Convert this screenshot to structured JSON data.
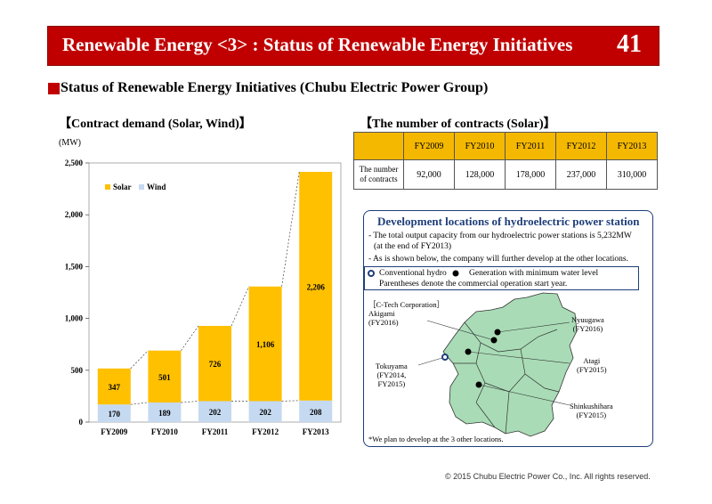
{
  "header": {
    "title": "Renewable Energy <3> : Status of Renewable Energy Initiatives",
    "page_number": "41"
  },
  "section_title": "Status of Renewable Energy Initiatives (Chubu Electric Power Group)",
  "chart_data": {
    "type": "bar",
    "stacked": true,
    "title": "【Contract demand (Solar, Wind)】",
    "ylabel": "(MW)",
    "categories": [
      "FY2009",
      "FY2010",
      "FY2011",
      "FY2012",
      "FY2013"
    ],
    "series": [
      {
        "name": "Wind",
        "values": [
          170,
          189,
          202,
          202,
          208
        ],
        "color": "#c5d9f1"
      },
      {
        "name": "Solar",
        "values": [
          347,
          501,
          726,
          1106,
          2206
        ],
        "color": "#ffc000"
      }
    ],
    "ylim": [
      0,
      2500
    ],
    "yticks": [
      0,
      500,
      1000,
      1500,
      2000,
      2500
    ],
    "ytick_labels": [
      "0",
      "500",
      "1,000",
      "1,500",
      "2,000",
      "2,500"
    ],
    "solar_labels": [
      "347",
      "501",
      "726",
      "1,106",
      "2,206"
    ],
    "wind_labels": [
      "170",
      "189",
      "202",
      "202",
      "208"
    ],
    "legend": {
      "position": "top-left"
    },
    "grid": false
  },
  "contracts": {
    "title": "【The number of contracts (Solar)】",
    "row_label_1": "The number",
    "row_label_2": "of contracts",
    "years": [
      "FY2009",
      "FY2010",
      "FY2011",
      "FY2012",
      "FY2013"
    ],
    "values": [
      "92,000",
      "128,000",
      "178,000",
      "237,000",
      "310,000"
    ]
  },
  "hydro": {
    "title": "Development locations of hydroelectric power station",
    "bullet1_line1": "- The total output  capacity from our hydroelectric power stations is 5,232MW",
    "bullet1_line2": "(at the end of FY2013)",
    "bullet2": "- As is shown below, the company will further develop at the other locations.",
    "legend_conventional": "Conventional hydro",
    "legend_generation": "Generation with minimum water level",
    "legend_note": "Parentheses denote the  commercial operation start year.",
    "locations": {
      "akigami_1": "［C-Tech Corporation］",
      "akigami_2": "Akigami",
      "akigami_3": "(FY2016)",
      "nyuugawa_1": "Nyuugawa",
      "nyuugawa_2": "(FY2016)",
      "atagi_1": "Atagi",
      "atagi_2": "(FY2015)",
      "tokuyama_1": "Tokuyama",
      "tokuyama_2": "(FY2014,",
      "tokuyama_3": "FY2015)",
      "shinkushihara_1": "Shinkushihara",
      "shinkushihara_2": "(FY2015)"
    },
    "footnote": "*We plan to develop at  the 3 other locations."
  },
  "footer": {
    "copyright": "© 2015 Chubu Electric Power Co., Inc. All rights reserved."
  },
  "colors": {
    "brand_red": "#c00000",
    "solar": "#ffc000",
    "wind": "#c5d9f1",
    "map_green": "#a9dcb6",
    "hydro_blue": "#1f3e7a"
  }
}
